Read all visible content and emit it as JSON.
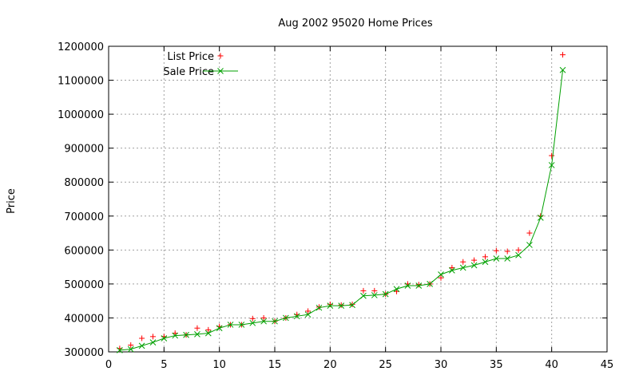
{
  "chart_data": {
    "type": "scatter",
    "title": "Aug 2002 95020 Home Prices",
    "xlabel": "",
    "ylabel": "Price",
    "xlim": [
      0,
      45
    ],
    "ylim": [
      300000,
      1200000
    ],
    "xticks": [
      0,
      5,
      10,
      15,
      20,
      25,
      30,
      35,
      40,
      45
    ],
    "yticks": [
      300000,
      400000,
      500000,
      600000,
      700000,
      800000,
      900000,
      1000000,
      1100000,
      1200000
    ],
    "grid": true,
    "legend_position": "top-left",
    "series": [
      {
        "name": "List Price",
        "style": "points",
        "marker": "plus",
        "color": "#ff0000",
        "x": [
          1,
          2,
          3,
          4,
          5,
          6,
          7,
          8,
          9,
          10,
          11,
          12,
          13,
          14,
          15,
          16,
          17,
          18,
          19,
          20,
          21,
          22,
          23,
          24,
          25,
          26,
          27,
          28,
          29,
          30,
          31,
          32,
          33,
          34,
          35,
          36,
          37,
          38,
          39,
          40,
          41
        ],
        "values": [
          310000,
          320000,
          340000,
          345000,
          345000,
          355000,
          350000,
          370000,
          365000,
          375000,
          380000,
          380000,
          398000,
          400000,
          390000,
          400000,
          410000,
          420000,
          432000,
          440000,
          438000,
          440000,
          480000,
          480000,
          470000,
          478000,
          500000,
          498000,
          500000,
          518000,
          548000,
          565000,
          570000,
          580000,
          598000,
          596000,
          600000,
          650000,
          700000,
          878000,
          1175000
        ]
      },
      {
        "name": "Sale Price",
        "style": "linespoints",
        "marker": "cross",
        "color": "#00a000",
        "x": [
          1,
          2,
          3,
          4,
          5,
          6,
          7,
          8,
          9,
          10,
          11,
          12,
          13,
          14,
          15,
          16,
          17,
          18,
          19,
          20,
          21,
          22,
          23,
          24,
          25,
          26,
          27,
          28,
          29,
          30,
          31,
          32,
          33,
          34,
          35,
          36,
          37,
          38,
          39,
          40,
          41
        ],
        "values": [
          305000,
          308000,
          318000,
          328000,
          340000,
          348000,
          350000,
          352000,
          355000,
          370000,
          380000,
          380000,
          385000,
          390000,
          390000,
          400000,
          405000,
          410000,
          430000,
          436000,
          436000,
          438000,
          465000,
          467000,
          470000,
          485000,
          495000,
          495000,
          500000,
          528000,
          540000,
          548000,
          555000,
          565000,
          575000,
          575000,
          585000,
          615000,
          695000,
          850000,
          1130000
        ]
      }
    ]
  }
}
